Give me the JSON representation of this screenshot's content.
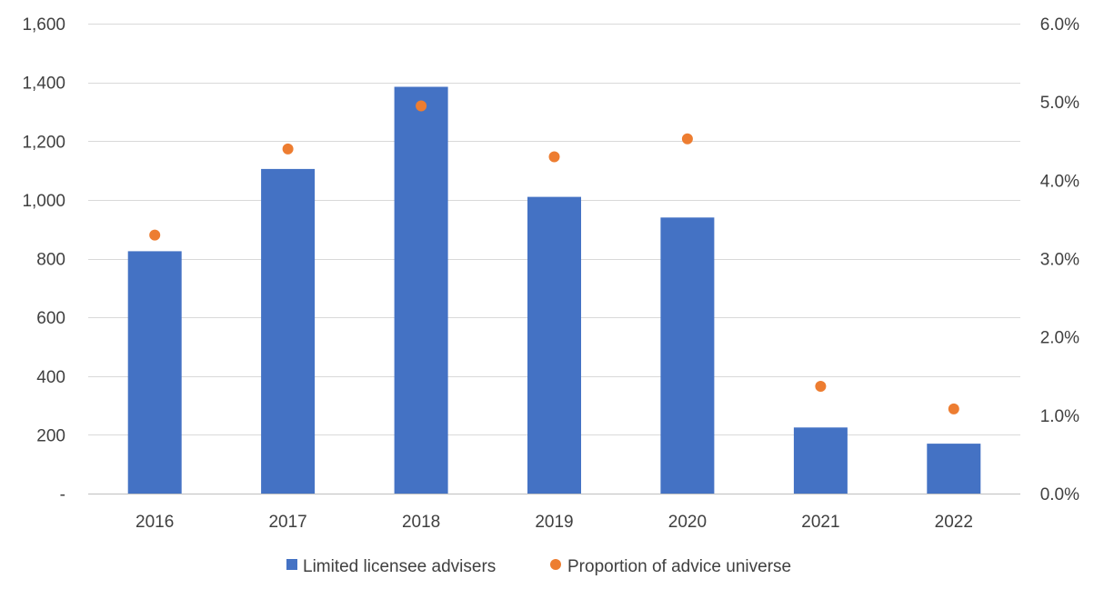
{
  "chart_data": {
    "type": "bar",
    "categories": [
      "2016",
      "2017",
      "2018",
      "2019",
      "2020",
      "2021",
      "2022"
    ],
    "series": [
      {
        "name": "Limited licensee advisers",
        "type": "bar",
        "axis": "left",
        "color": "#4472c4",
        "values": [
          825,
          1105,
          1385,
          1010,
          940,
          225,
          170
        ]
      },
      {
        "name": "Proportion of advice universe",
        "type": "scatter",
        "axis": "right",
        "color": "#ed7d31",
        "values": [
          0.033,
          0.044,
          0.0495,
          0.043,
          0.0453,
          0.0137,
          0.0108
        ]
      }
    ],
    "y_left": {
      "ylim": [
        0,
        1600
      ],
      "ticks": [
        0,
        200,
        400,
        600,
        800,
        1000,
        1200,
        1400,
        1600
      ],
      "tick_labels": [
        "-",
        "200",
        "400",
        "600",
        "800",
        "1,000",
        "1,200",
        "1,400",
        "1,600"
      ]
    },
    "y_right": {
      "ylim": [
        0,
        0.06
      ],
      "ticks": [
        0,
        0.01,
        0.02,
        0.03,
        0.04,
        0.05,
        0.06
      ],
      "tick_labels": [
        "0.0%",
        "1.0%",
        "2.0%",
        "3.0%",
        "4.0%",
        "5.0%",
        "6.0%"
      ]
    },
    "grid": true,
    "legend": {
      "placement": "bottom",
      "entries": [
        "Limited licensee advisers",
        "Proportion of advice universe"
      ]
    }
  }
}
